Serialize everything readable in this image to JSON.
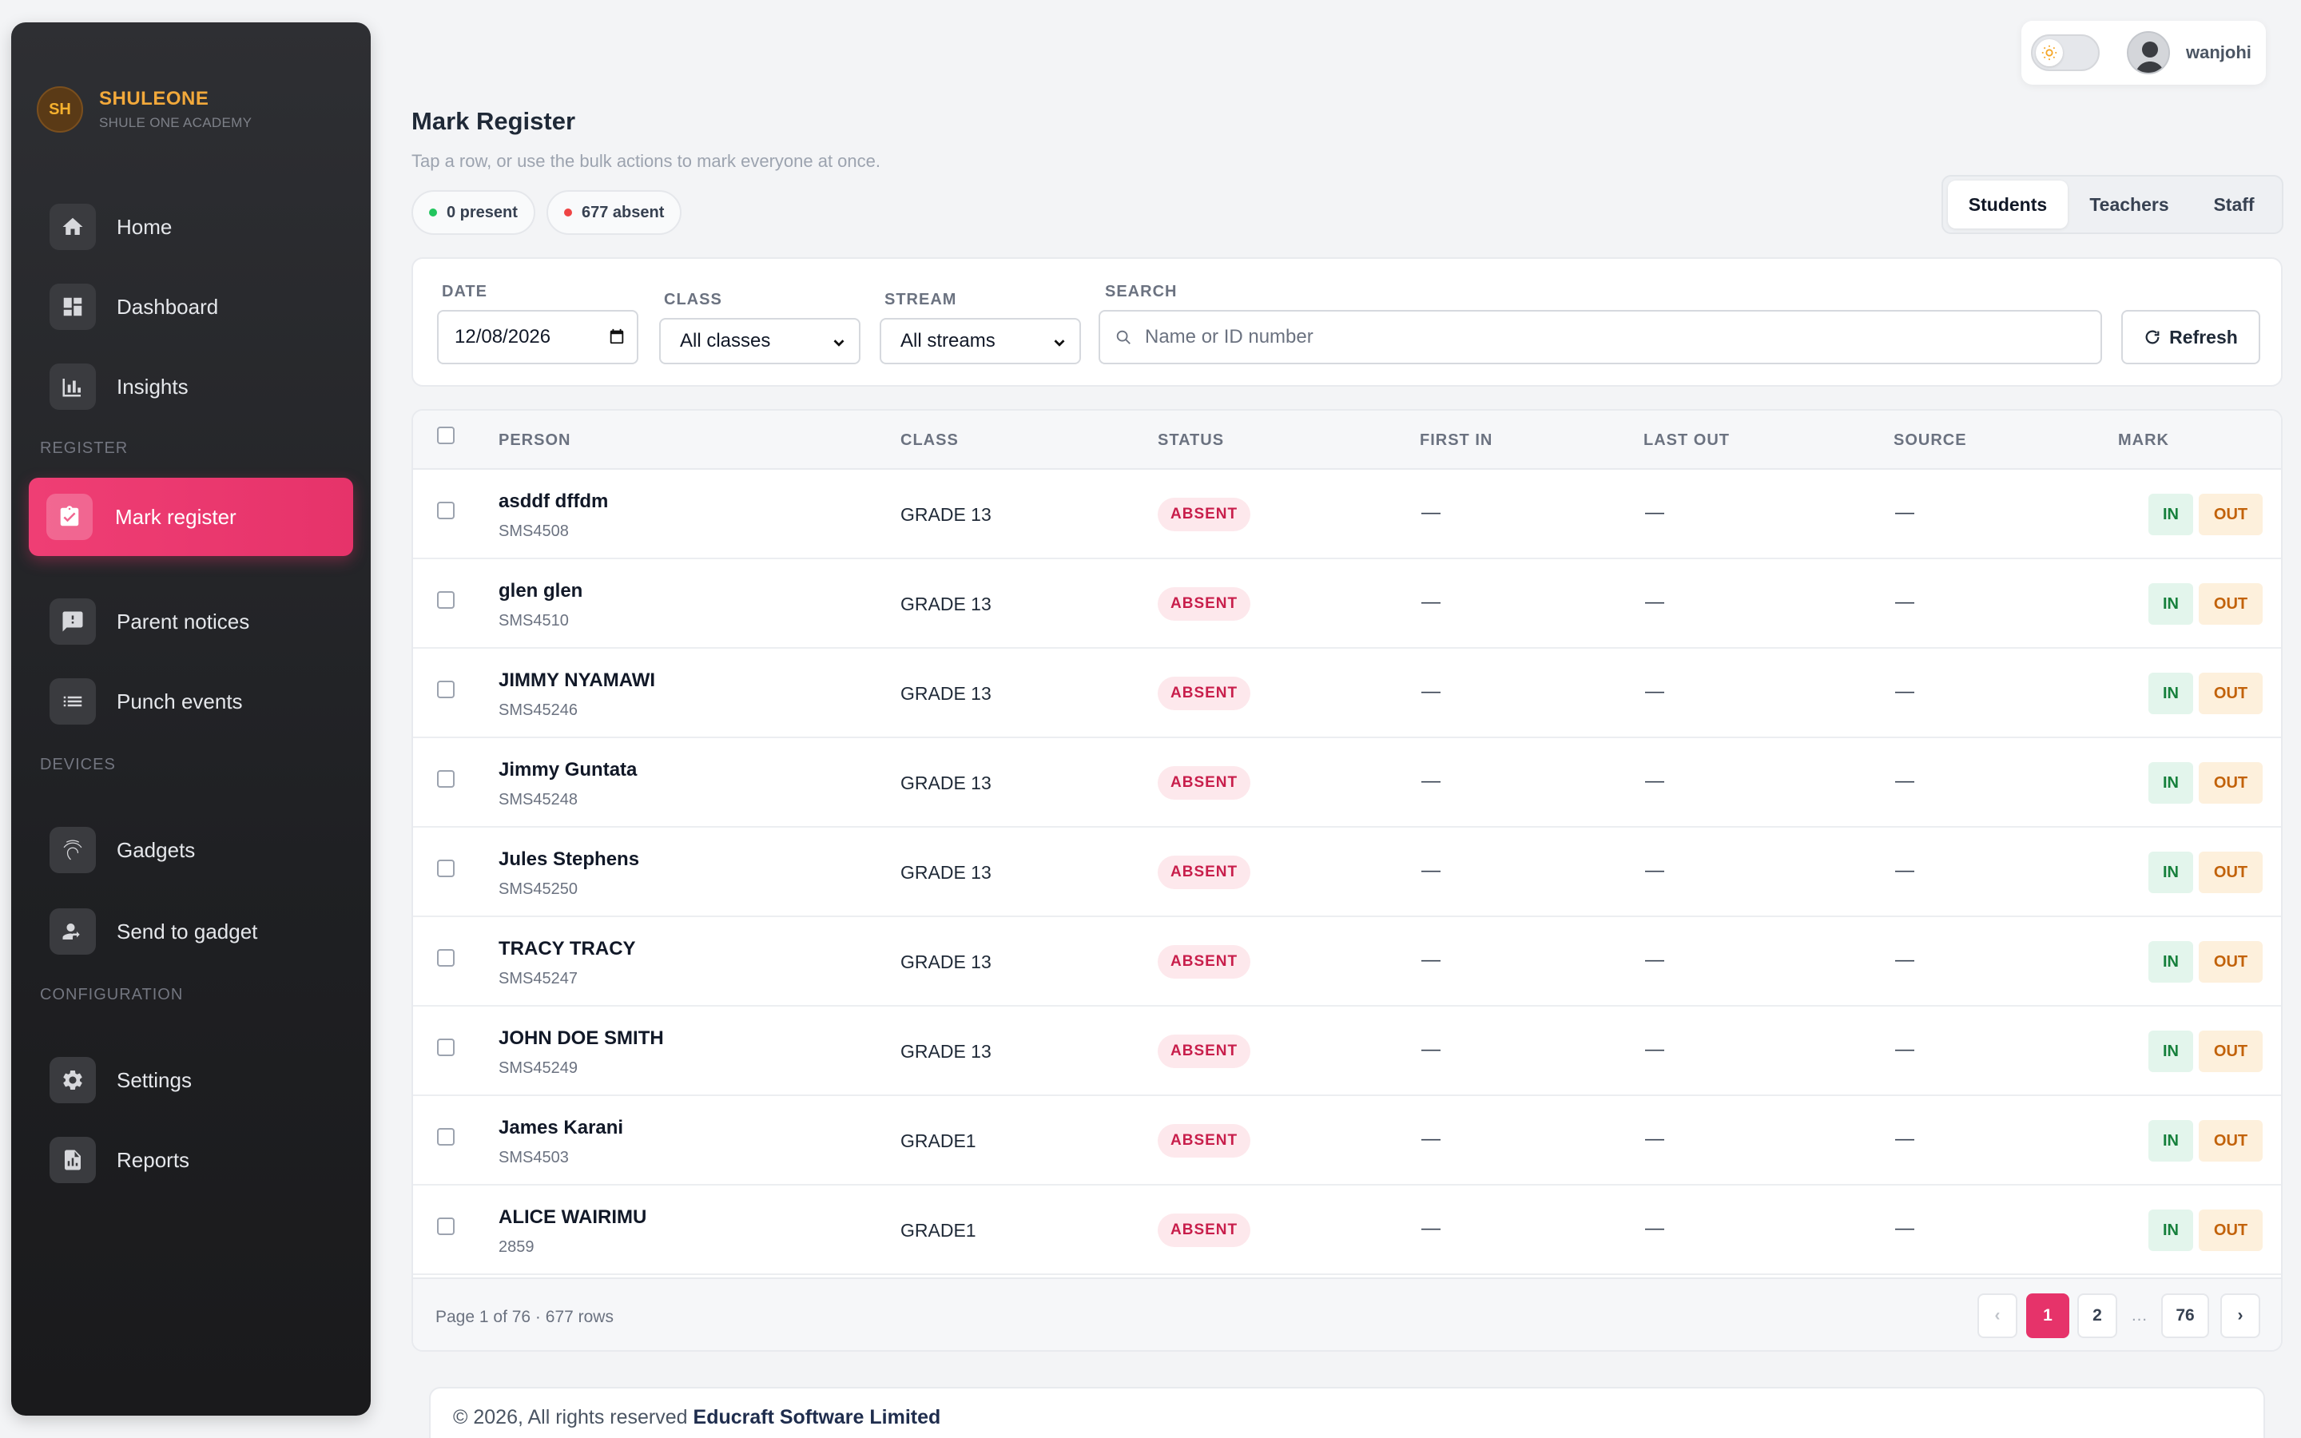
{
  "brand": {
    "initials": "SH",
    "name": "SHULEONE",
    "subtitle": "SHULE ONE ACADEMY"
  },
  "sidebar": {
    "items": [
      {
        "label": "Home",
        "icon": "home-icon"
      },
      {
        "label": "Dashboard",
        "icon": "dashboard-icon"
      },
      {
        "label": "Insights",
        "icon": "bar-chart-icon"
      },
      {
        "label": "Mark register",
        "icon": "clipboard-check-icon",
        "active": true
      },
      {
        "label": "Parent notices",
        "icon": "feedback-icon"
      },
      {
        "label": "Punch events",
        "icon": "list-icon"
      },
      {
        "label": "Gadgets",
        "icon": "fingerprint-icon"
      },
      {
        "label": "Send to gadget",
        "icon": "person-send-icon"
      },
      {
        "label": "Settings",
        "icon": "gear-icon"
      },
      {
        "label": "Reports",
        "icon": "report-icon"
      }
    ],
    "sections": {
      "register": "REGISTER",
      "devices": "DEVICES",
      "configuration": "CONFIGURATION"
    }
  },
  "user": {
    "name": "wanjohi",
    "theme_icon": "sun-icon"
  },
  "header": {
    "title": "Mark Register",
    "subtitle": "Tap a row, or use the bulk actions to mark everyone at once.",
    "present": "0 present",
    "absent": "677 absent",
    "tabs": [
      "Students",
      "Teachers",
      "Staff"
    ],
    "active_tab": "Students"
  },
  "filters": {
    "date_label": "DATE",
    "date_value": "12/08/2026",
    "class_label": "CLASS",
    "class_value": "All classes",
    "stream_label": "STREAM",
    "stream_value": "All streams",
    "search_label": "SEARCH",
    "search_placeholder": "Name or ID number",
    "refresh_label": "Refresh"
  },
  "table": {
    "columns": [
      "PERSON",
      "CLASS",
      "STATUS",
      "FIRST IN",
      "LAST OUT",
      "SOURCE",
      "MARK"
    ],
    "rows": [
      {
        "name": "asddf dffdm",
        "id": "SMS4508",
        "class": "GRADE 13",
        "status": "ABSENT",
        "first_in": "—",
        "last_out": "—",
        "source": "—"
      },
      {
        "name": "glen glen",
        "id": "SMS4510",
        "class": "GRADE 13",
        "status": "ABSENT",
        "first_in": "—",
        "last_out": "—",
        "source": "—"
      },
      {
        "name": "JIMMY NYAMAWI",
        "id": "SMS45246",
        "class": "GRADE 13",
        "status": "ABSENT",
        "first_in": "—",
        "last_out": "—",
        "source": "—"
      },
      {
        "name": "Jimmy Guntata",
        "id": "SMS45248",
        "class": "GRADE 13",
        "status": "ABSENT",
        "first_in": "—",
        "last_out": "—",
        "source": "—"
      },
      {
        "name": "Jules Stephens",
        "id": "SMS45250",
        "class": "GRADE 13",
        "status": "ABSENT",
        "first_in": "—",
        "last_out": "—",
        "source": "—"
      },
      {
        "name": "TRACY TRACY",
        "id": "SMS45247",
        "class": "GRADE 13",
        "status": "ABSENT",
        "first_in": "—",
        "last_out": "—",
        "source": "—"
      },
      {
        "name": "JOHN DOE SMITH",
        "id": "SMS45249",
        "class": "GRADE 13",
        "status": "ABSENT",
        "first_in": "—",
        "last_out": "—",
        "source": "—"
      },
      {
        "name": "James Karani",
        "id": "SMS4503",
        "class": "GRADE1",
        "status": "ABSENT",
        "first_in": "—",
        "last_out": "—",
        "source": "—"
      },
      {
        "name": "ALICE WAIRIMU",
        "id": "2859",
        "class": "GRADE1",
        "status": "ABSENT",
        "first_in": "—",
        "last_out": "—",
        "source": "—"
      }
    ],
    "mark_in": "IN",
    "mark_out": "OUT"
  },
  "pagination": {
    "info": "Page 1 of 76 · 677 rows",
    "prev": "‹",
    "pages": [
      "1",
      "2",
      "76"
    ],
    "ellipsis": "…",
    "next": "›",
    "current": "1"
  },
  "footer": {
    "copyright": "© 2026, All rights reserved ",
    "company": "Educraft Software Limited"
  },
  "colors": {
    "accent": "#e6336a",
    "sidebar": "#1f2023",
    "present_dot": "#22c55e",
    "absent_dot": "#ef4444"
  }
}
